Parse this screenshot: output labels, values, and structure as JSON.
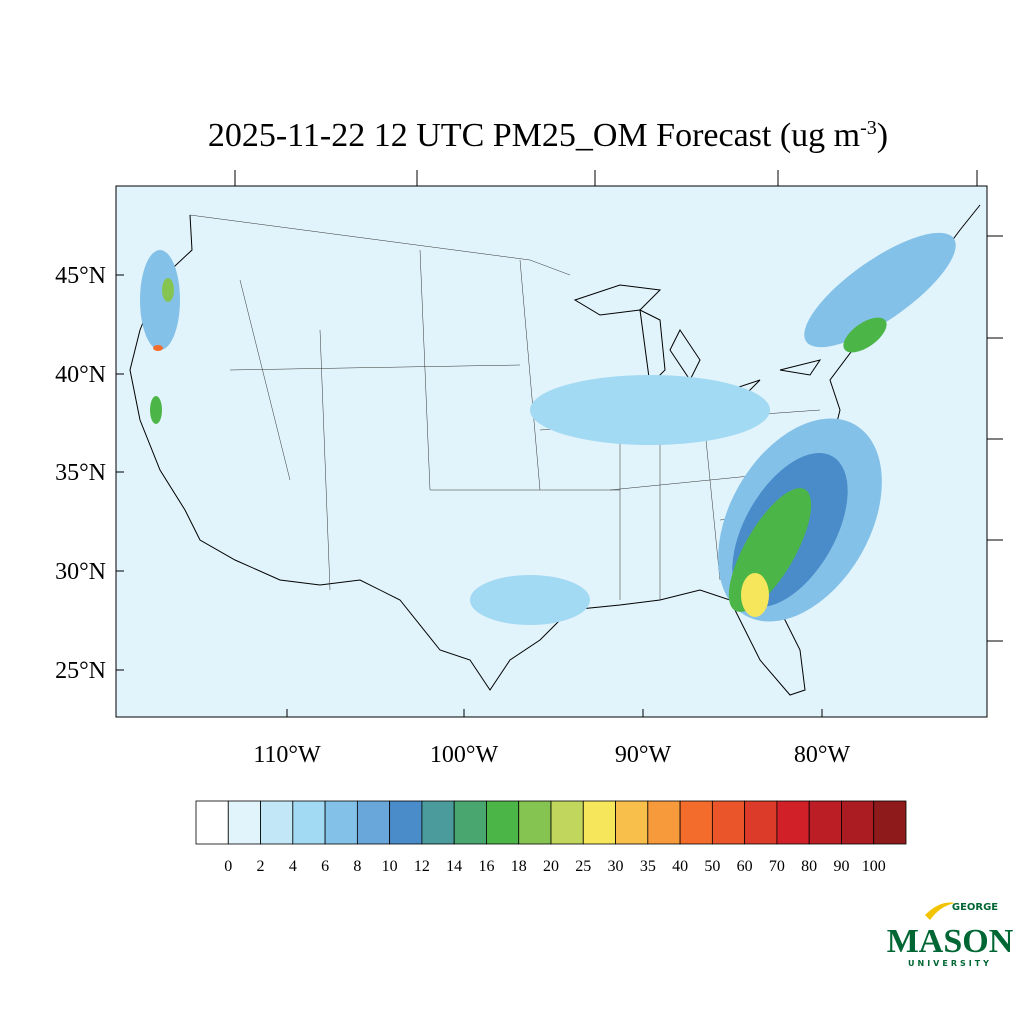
{
  "title": {
    "main": "2025-11-22 12 UTC PM25_OM Forecast (ug m",
    "superscript": "-3",
    "end": ")"
  },
  "map": {
    "lat_labels": [
      "45°N",
      "40°N",
      "35°N",
      "30°N",
      "25°N"
    ],
    "lon_labels": [
      "110°W",
      "100°W",
      "90°W",
      "80°W"
    ]
  },
  "colorbar": {
    "colors": [
      "#ffffff",
      "#e1f3fb",
      "#c2e7f7",
      "#a2d9f3",
      "#83c1e8",
      "#69a7da",
      "#4a8bc9",
      "#4b9b9c",
      "#48a66e",
      "#4cb548",
      "#86c451",
      "#c1d65c",
      "#f6e65b",
      "#f8bf4a",
      "#f79a3b",
      "#f46c2b",
      "#ea552a",
      "#dd3b29",
      "#d22029",
      "#bc1e25",
      "#aa1c22",
      "#8f1a1c"
    ],
    "labels": [
      "0",
      "2",
      "4",
      "6",
      "8",
      "10",
      "12",
      "14",
      "16",
      "18",
      "20",
      "25",
      "30",
      "35",
      "40",
      "50",
      "60",
      "70",
      "80",
      "90",
      "100"
    ]
  },
  "logo": {
    "top": "GEORGE",
    "main": "MASON",
    "bottom": "UNIVERSITY"
  }
}
